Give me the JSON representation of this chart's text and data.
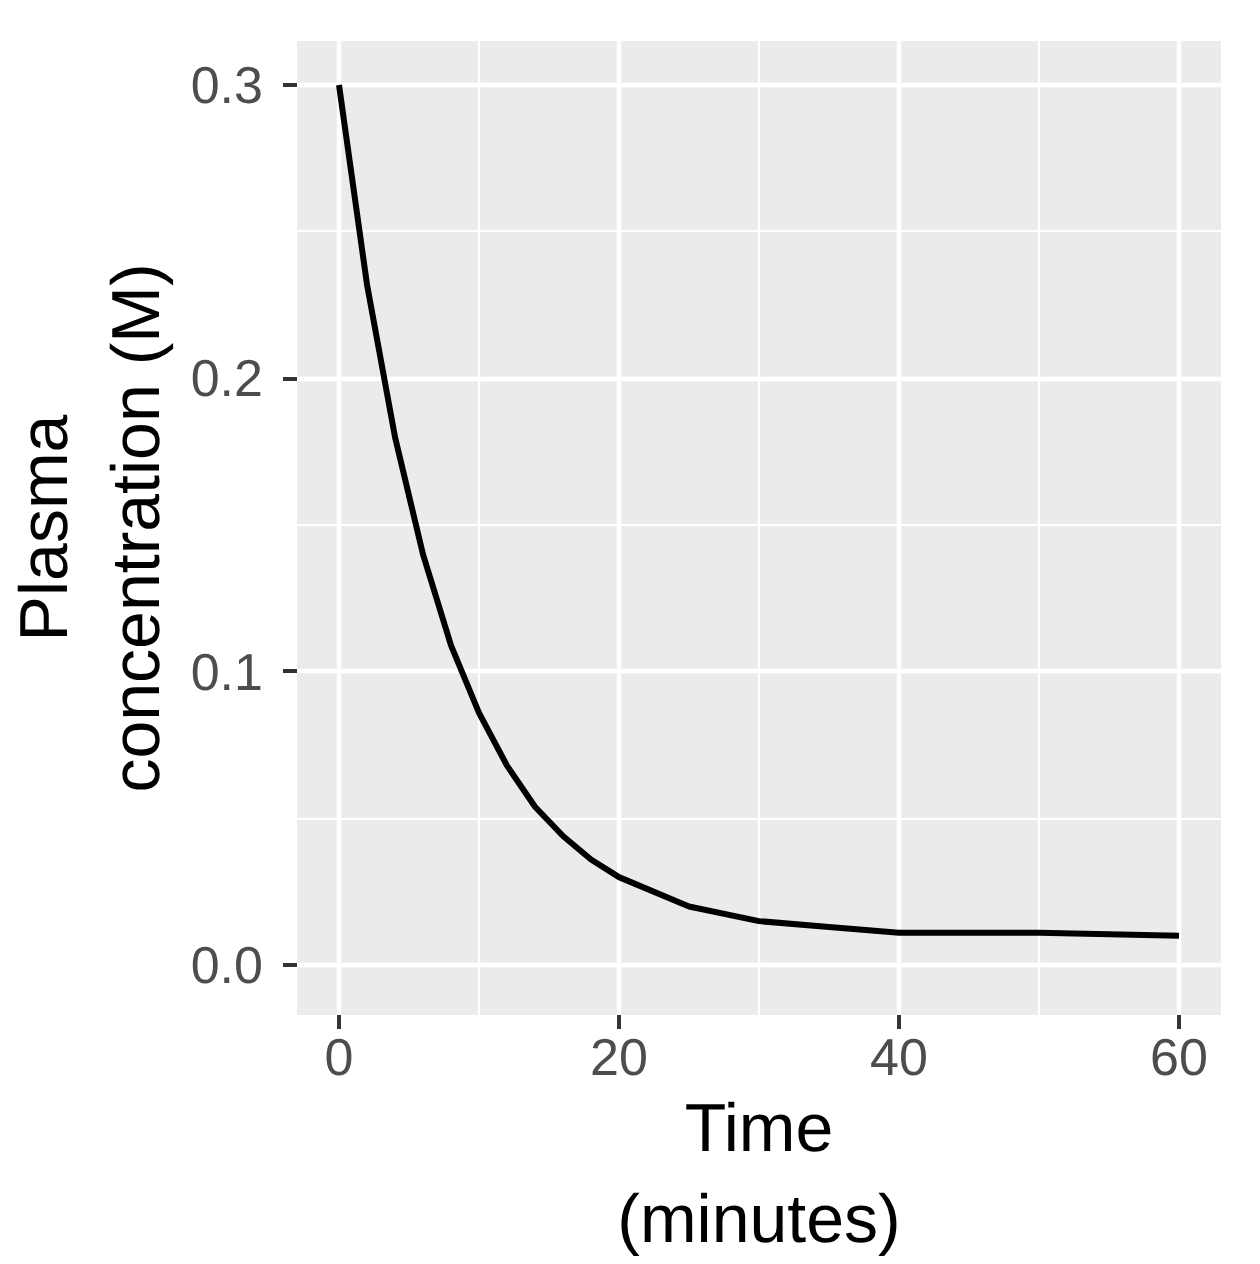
{
  "chart_data": {
    "type": "line",
    "xlabel": "Time\n(minutes)",
    "ylabel": "Plasma\nconcentration (M)",
    "x": [
      0,
      2,
      4,
      6,
      8,
      10,
      12,
      14,
      16,
      18,
      20,
      25,
      30,
      35,
      40,
      50,
      60
    ],
    "series": [
      {
        "color": "#000000",
        "values": [
          0.3,
          0.232,
          0.18,
          0.14,
          0.109,
          0.086,
          0.068,
          0.054,
          0.044,
          0.036,
          0.03,
          0.02,
          0.015,
          0.013,
          0.011,
          0.011,
          0.01
        ]
      }
    ],
    "xlim": [
      -3,
      63
    ],
    "ylim": [
      -0.017,
      0.315
    ],
    "xticks": [
      0,
      20,
      40,
      60
    ],
    "yticks": [
      {
        "value": 0,
        "label": "0.0"
      },
      {
        "value": 0.1,
        "label": "0.1"
      },
      {
        "value": 0.2,
        "label": "0.2"
      },
      {
        "value": 0.3,
        "label": "0.3"
      }
    ],
    "grid": true,
    "marker": "none",
    "line_style": "solid"
  }
}
